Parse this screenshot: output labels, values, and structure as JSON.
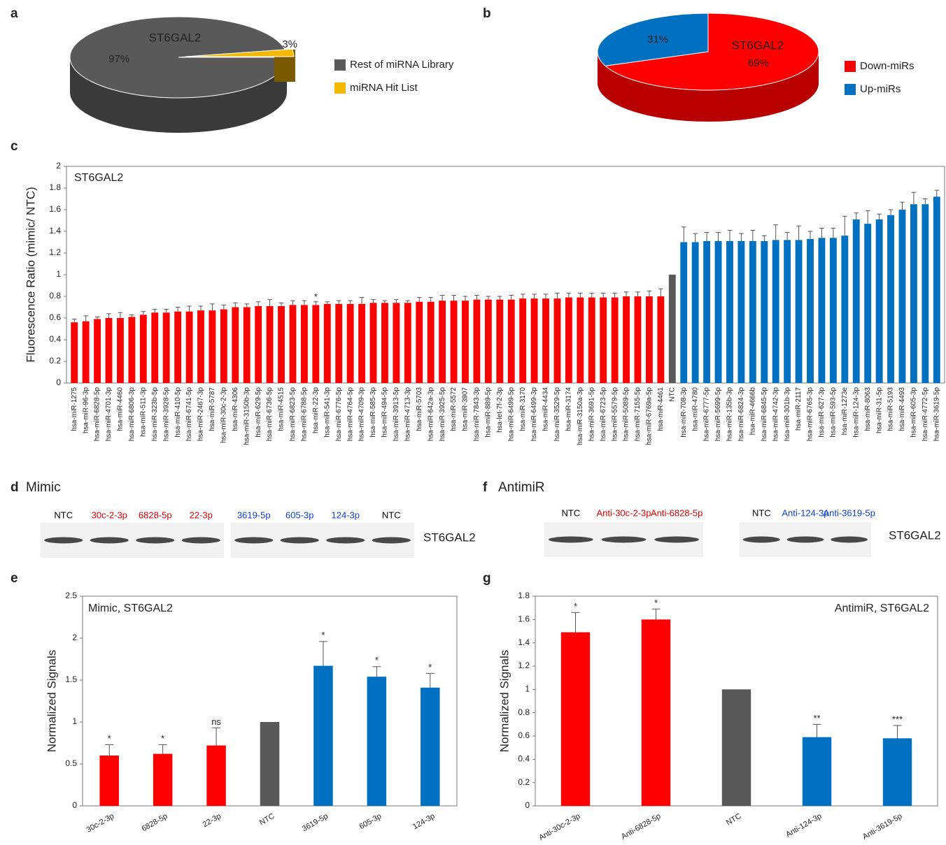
{
  "chart_data": [
    {
      "type": "pie",
      "label": "a",
      "title": "ST6GAL2",
      "categories": [
        "Rest of miRNA Library",
        "miRNA Hit List"
      ],
      "values": [
        97,
        3
      ],
      "value_labels": [
        "97%",
        "3%"
      ],
      "colors": [
        "#595959",
        "#f5b800"
      ]
    },
    {
      "type": "pie",
      "label": "b",
      "title": "ST6GAL2",
      "categories": [
        "Down-miRs",
        "Up-miRs"
      ],
      "values": [
        69,
        31
      ],
      "value_labels": [
        "69%",
        "31%"
      ],
      "colors": [
        "#ff0000",
        "#0070c0"
      ]
    },
    {
      "type": "bar",
      "label": "c",
      "title": "ST6GAL2",
      "y_label": "Fluorescence Ratio (mimic/ NTC)",
      "categories": [
        "hsa-miR-1275",
        "hsa-miR-96-3p",
        "hsa-miR-6828-5p",
        "hsa-miR-4701-3p",
        "hsa-miR-4460",
        "hsa-miR-6806-3p",
        "hsa-miR-511-3p",
        "hsa-miR-323b-5p",
        "hsa-miR-3928-5p",
        "hsa-miR-410-5p",
        "hsa-miR-6741-5p",
        "hsa-miR-2467-3p",
        "hsa-miR-5787",
        "hsa-miR-30c-2-3p",
        "hsa-miR-4306",
        "hsa-miR-3150b-3p",
        "hsa-miR-629-5p",
        "hsa-miR-6736-5p",
        "hsa-miR-4515",
        "hsa-miR-6823-5p",
        "hsa-miR-6788-5p",
        "hsa-miR-22-3p",
        "hsa-miR-541-3p",
        "hsa-miR-6776-5p",
        "hsa-miR-4764-5p",
        "hsa-miR-4709-3p",
        "hsa-miR-585-3p",
        "hsa-miR-494-5p",
        "hsa-miR-3913-5p",
        "hsa-miR-4713-3p",
        "hsa-miR-5703",
        "hsa-miR-642a-3p",
        "hsa-miR-3925-5p",
        "hsa-miR-5572",
        "hsa-miR-3907",
        "hsa-miR-7843-3p",
        "hsa-miR-889-5p",
        "hsa-let-7f-2-3p",
        "hsa-miR-6499-5p",
        "hsa-miR-3170",
        "hsa-miR-6499-3p",
        "hsa-miR-4434",
        "hsa-miR-3529-5p",
        "hsa-miR-3174",
        "hsa-miR-3150a-3p",
        "hsa-miR-3691-5p",
        "hsa-miR-6723-5p",
        "hsa-miR-5579-5p",
        "hsa-miR-5089-5p",
        "hsa-miR-7155-5p",
        "hsa-miR-6769a-5p",
        "hsa-miR-4461",
        "NTC",
        "hsa-miR-708-3p",
        "hsa-miR-4780",
        "hsa-miR-6777-5p",
        "hsa-miR-5699-5p",
        "hsa-miR-135b-3p",
        "hsa-miR-6824-3p",
        "hsa-miR-4666b",
        "hsa-miR-6845-5p",
        "hsa-miR-4742-3p",
        "hsa-miR-301b-3p",
        "hsa-miR-2117",
        "hsa-miR-6765-3p",
        "hsa-miR-627-3p",
        "hsa-miR-593-5p",
        "hsa-miR-1273e",
        "hsa-miR-124-3p",
        "hsa-miR-8063",
        "hsa-miR-31-5p",
        "hsa-miR-5193",
        "hsa-miR-4493",
        "hsa-miR-605-3p",
        "hsa-miR-4772-5p",
        "hsa-miR-3619-5p"
      ],
      "values": [
        0.56,
        0.57,
        0.59,
        0.6,
        0.6,
        0.61,
        0.63,
        0.65,
        0.65,
        0.66,
        0.66,
        0.67,
        0.67,
        0.68,
        0.7,
        0.7,
        0.71,
        0.71,
        0.71,
        0.72,
        0.72,
        0.72,
        0.73,
        0.73,
        0.73,
        0.73,
        0.74,
        0.74,
        0.74,
        0.74,
        0.75,
        0.75,
        0.76,
        0.76,
        0.76,
        0.77,
        0.77,
        0.77,
        0.77,
        0.78,
        0.78,
        0.78,
        0.78,
        0.79,
        0.79,
        0.79,
        0.79,
        0.79,
        0.8,
        0.8,
        0.8,
        0.8,
        1.0,
        1.3,
        1.3,
        1.31,
        1.31,
        1.31,
        1.31,
        1.31,
        1.31,
        1.32,
        1.32,
        1.32,
        1.33,
        1.34,
        1.34,
        1.36,
        1.51,
        1.47,
        1.51,
        1.55,
        1.6,
        1.65,
        1.65,
        1.72
      ],
      "errors": [
        0.03,
        0.05,
        0.02,
        0.04,
        0.05,
        0.02,
        0.03,
        0.03,
        0.03,
        0.04,
        0.05,
        0.04,
        0.06,
        0.04,
        0.04,
        0.03,
        0.04,
        0.06,
        0.03,
        0.04,
        0.04,
        0.03,
        0.02,
        0.03,
        0.03,
        0.06,
        0.03,
        0.02,
        0.03,
        0.02,
        0.04,
        0.04,
        0.05,
        0.05,
        0.04,
        0.04,
        0.03,
        0.03,
        0.04,
        0.04,
        0.04,
        0.04,
        0.05,
        0.04,
        0.04,
        0.04,
        0.04,
        0.04,
        0.04,
        0.04,
        0.05,
        0.07,
        0,
        0.14,
        0.08,
        0.08,
        0.08,
        0.1,
        0.07,
        0.1,
        0.05,
        0.14,
        0.07,
        0.13,
        0.07,
        0.09,
        0.09,
        0.18,
        0.06,
        0.12,
        0.05,
        0.05,
        0.07,
        0.11,
        0.05,
        0.06
      ],
      "colors": [
        "#ff0000",
        "#ff0000",
        "#ff0000",
        "#ff0000",
        "#ff0000",
        "#ff0000",
        "#ff0000",
        "#ff0000",
        "#ff0000",
        "#ff0000",
        "#ff0000",
        "#ff0000",
        "#ff0000",
        "#ff0000",
        "#ff0000",
        "#ff0000",
        "#ff0000",
        "#ff0000",
        "#ff0000",
        "#ff0000",
        "#ff0000",
        "#ff0000",
        "#ff0000",
        "#ff0000",
        "#ff0000",
        "#ff0000",
        "#ff0000",
        "#ff0000",
        "#ff0000",
        "#ff0000",
        "#ff0000",
        "#ff0000",
        "#ff0000",
        "#ff0000",
        "#ff0000",
        "#ff0000",
        "#ff0000",
        "#ff0000",
        "#ff0000",
        "#ff0000",
        "#ff0000",
        "#ff0000",
        "#ff0000",
        "#ff0000",
        "#ff0000",
        "#ff0000",
        "#ff0000",
        "#ff0000",
        "#ff0000",
        "#ff0000",
        "#ff0000",
        "#ff0000",
        "#595959",
        "#0070c0",
        "#0070c0",
        "#0070c0",
        "#0070c0",
        "#0070c0",
        "#0070c0",
        "#0070c0",
        "#0070c0",
        "#0070c0",
        "#0070c0",
        "#0070c0",
        "#0070c0",
        "#0070c0",
        "#0070c0",
        "#0070c0",
        "#0070c0",
        "#0070c0",
        "#0070c0",
        "#0070c0",
        "#0070c0",
        "#0070c0",
        "#0070c0",
        "#0070c0"
      ],
      "ylim": [
        0,
        2
      ],
      "yticks": [
        0,
        0.2,
        0.4,
        0.6,
        0.8,
        1,
        1.2,
        1.4,
        1.6,
        1.8,
        2
      ],
      "annotations": [
        {
          "category": "hsa-miR-22-3p",
          "text": "*"
        }
      ]
    },
    {
      "type": "bar",
      "label": "e",
      "title": "Mimic, ST6GAL2",
      "y_label": "Normalized Signals",
      "categories": [
        "30c-2-3p",
        "6828-5p",
        "22-3p",
        "NTC",
        "3619-5p",
        "605-3p",
        "124-3p"
      ],
      "values": [
        0.6,
        0.62,
        0.72,
        1.0,
        1.67,
        1.54,
        1.41
      ],
      "errors": [
        0.13,
        0.11,
        0.21,
        0,
        0.29,
        0.12,
        0.17
      ],
      "bar_labels": [
        "*",
        "*",
        "ns",
        null,
        "*",
        "*",
        "*"
      ],
      "colors": [
        "#ff0000",
        "#ff0000",
        "#ff0000",
        "#595959",
        "#0070c0",
        "#0070c0",
        "#0070c0"
      ],
      "ylim": [
        0,
        2.5
      ],
      "yticks": [
        0,
        0.5,
        1,
        1.5,
        2,
        2.5
      ]
    },
    {
      "type": "bar",
      "label": "g",
      "title": "AntimiR, ST6GAL2",
      "y_label": "Normalized Signals",
      "categories": [
        "Anti-30c-2-3p",
        "Anti-6828-5p",
        "NTC",
        "Anti-124-3p",
        "Anti-3619-5p"
      ],
      "values": [
        1.49,
        1.6,
        1.0,
        0.59,
        0.58
      ],
      "errors": [
        0.17,
        0.09,
        0,
        0.11,
        0.11
      ],
      "bar_labels": [
        "*",
        "*",
        null,
        "**",
        "***"
      ],
      "colors": [
        "#ff0000",
        "#ff0000",
        "#595959",
        "#0070c0",
        "#0070c0"
      ],
      "ylim": [
        0,
        1.8
      ],
      "yticks": [
        0,
        0.2,
        0.4,
        0.6,
        0.8,
        1,
        1.2,
        1.4,
        1.6,
        1.8
      ]
    }
  ],
  "blots": [
    {
      "label": "d",
      "title": "Mimic",
      "protein": "ST6GAL2",
      "groups": [
        [
          {
            "text": "NTC",
            "color": "#000000"
          },
          {
            "text": "30c-2-3p",
            "color": "#e00000"
          },
          {
            "text": "6828-5p",
            "color": "#e00000"
          },
          {
            "text": "22-3p",
            "color": "#e00000"
          }
        ],
        [
          {
            "text": "3619-5p",
            "color": "#1040d0"
          },
          {
            "text": "605-3p",
            "color": "#1040d0"
          },
          {
            "text": "124-3p",
            "color": "#1040d0"
          },
          {
            "text": "NTC",
            "color": "#000000"
          }
        ]
      ]
    },
    {
      "label": "f",
      "title": "AntimiR",
      "protein": "ST6GAL2",
      "groups": [
        [
          {
            "text": "NTC",
            "color": "#000000"
          },
          {
            "text": "Anti-30c-2-3p",
            "color": "#e00000"
          },
          {
            "text": "Anti-6828-5p",
            "color": "#e00000"
          }
        ],
        [
          {
            "text": "NTC",
            "color": "#000000"
          },
          {
            "text": "Anti-124-3p",
            "color": "#1040d0"
          },
          {
            "text": "Anti-3619-5p",
            "color": "#1040d0"
          }
        ]
      ]
    }
  ]
}
